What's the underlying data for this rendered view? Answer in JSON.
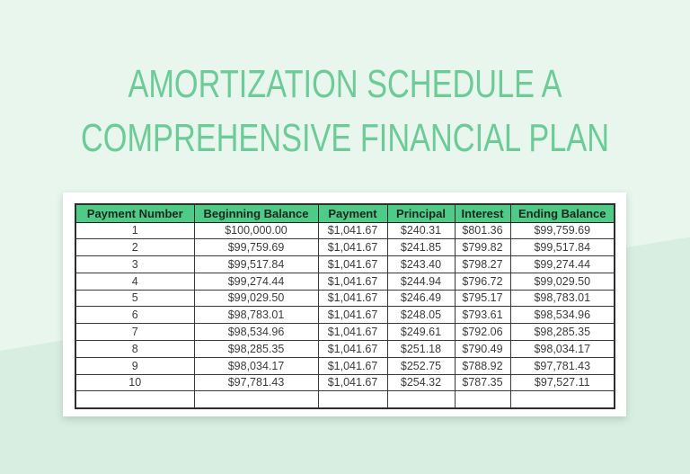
{
  "title": {
    "line1": "AMORTIZATION SCHEDULE A",
    "line2": "COMPREHENSIVE FINANCIAL PLAN"
  },
  "colors": {
    "bg_top": "#e8f6ee",
    "bg_bottom": "#d8eee1",
    "title_green": "#6dcb98",
    "header_green": "#4ecb86",
    "header_text": "#1b261f",
    "body_text": "#3b3b3b"
  },
  "table": {
    "columns": [
      "Payment Number",
      "Beginning Balance",
      "Payment",
      "Principal",
      "Interest",
      "Ending Balance"
    ],
    "rows": [
      [
        "1",
        "$100,000.00",
        "$1,041.67",
        "$240.31",
        "$801.36",
        "$99,759.69"
      ],
      [
        "2",
        "$99,759.69",
        "$1,041.67",
        "$241.85",
        "$799.82",
        "$99,517.84"
      ],
      [
        "3",
        "$99,517.84",
        "$1,041.67",
        "$243.40",
        "$798.27",
        "$99,274.44"
      ],
      [
        "4",
        "$99,274.44",
        "$1,041.67",
        "$244.94",
        "$796.72",
        "$99,029.50"
      ],
      [
        "5",
        "$99,029.50",
        "$1,041.67",
        "$246.49",
        "$795.17",
        "$98,783.01"
      ],
      [
        "6",
        "$98,783.01",
        "$1,041.67",
        "$248.05",
        "$793.61",
        "$98,534.96"
      ],
      [
        "7",
        "$98,534.96",
        "$1,041.67",
        "$249.61",
        "$792.06",
        "$98,285.35"
      ],
      [
        "8",
        "$98,285.35",
        "$1,041.67",
        "$251.18",
        "$790.49",
        "$98,034.17"
      ],
      [
        "9",
        "$98,034.17",
        "$1,041.67",
        "$252.75",
        "$788.92",
        "$97,781.43"
      ],
      [
        "10",
        "$97,781.43",
        "$1,041.67",
        "$254.32",
        "$787.35",
        "$97,527.11"
      ],
      [
        "",
        "",
        "",
        "",
        "",
        ""
      ]
    ]
  }
}
